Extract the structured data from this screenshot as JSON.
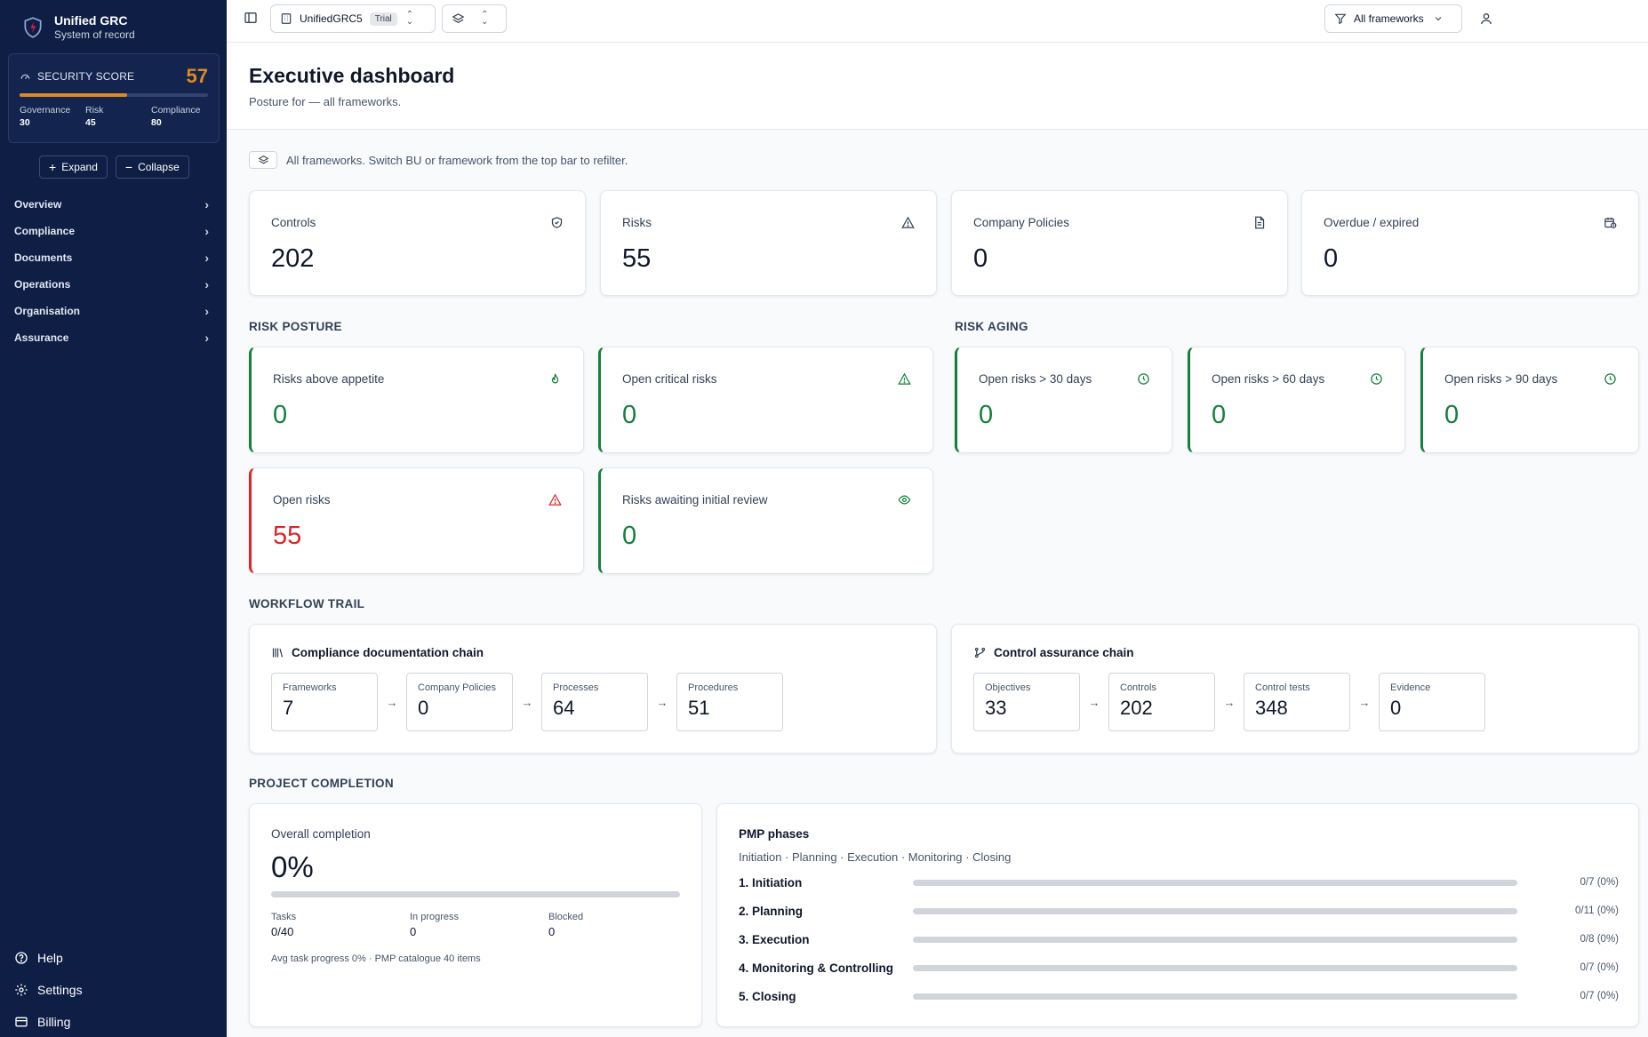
{
  "brand": {
    "title": "Unified GRC",
    "subtitle": "System of record"
  },
  "security_score": {
    "label": "SECURITY SCORE",
    "value": "57",
    "progress": 0.57,
    "governance_label": "Governance",
    "governance_value": "30",
    "risk_label": "Risk",
    "risk_value": "45",
    "compliance_label": "Compliance",
    "compliance_value": "80",
    "color": "#e08a1e"
  },
  "sidebar": {
    "expand_label": "Expand",
    "collapse_label": "Collapse",
    "items": [
      {
        "label": "Overview"
      },
      {
        "label": "Compliance"
      },
      {
        "label": "Documents"
      },
      {
        "label": "Operations"
      },
      {
        "label": "Organisation"
      },
      {
        "label": "Assurance"
      }
    ],
    "bottom": [
      {
        "label": "Help",
        "icon": "help-circle-icon"
      },
      {
        "label": "Settings",
        "icon": "gear-icon"
      },
      {
        "label": "Billing",
        "icon": "credit-card-icon"
      }
    ]
  },
  "topbar": {
    "org_name": "UnifiedGRC5",
    "org_badge": "Trial",
    "framework_filter": "All frameworks"
  },
  "page": {
    "title": "Executive dashboard",
    "subtitle": "Posture for — all frameworks.",
    "notice": "All frameworks. Switch BU or framework from the top bar to refilter."
  },
  "kpis": [
    {
      "label": "Controls",
      "value": "202",
      "icon": "shield-check-icon"
    },
    {
      "label": "Risks",
      "value": "55",
      "icon": "warning-triangle-icon"
    },
    {
      "label": "Company Policies",
      "value": "0",
      "icon": "document-icon"
    },
    {
      "label": "Overdue / expired",
      "value": "0",
      "icon": "calendar-clock-icon"
    }
  ],
  "risk_posture": {
    "heading": "RISK POSTURE",
    "cards": [
      {
        "label": "Risks above appetite",
        "value": "0",
        "icon": "flame-icon"
      },
      {
        "label": "Open critical risks",
        "value": "0",
        "icon": "warning-triangle-icon"
      },
      {
        "label": "Open risks",
        "value": "55",
        "icon": "warning-triangle-icon"
      },
      {
        "label": "Risks awaiting initial review",
        "value": "0",
        "icon": "eye-icon"
      }
    ]
  },
  "risk_aging": {
    "heading": "RISK AGING",
    "cards": [
      {
        "label": "Open risks > 30 days",
        "value": "0",
        "icon": "clock-icon"
      },
      {
        "label": "Open risks > 60 days",
        "value": "0",
        "icon": "clock-icon"
      },
      {
        "label": "Open risks > 90 days",
        "value": "0",
        "icon": "clock-icon"
      }
    ]
  },
  "workflow": {
    "heading": "WORKFLOW TRAIL",
    "doc_chain": {
      "title": "Compliance documentation chain",
      "steps": [
        {
          "label": "Frameworks",
          "value": "7"
        },
        {
          "label": "Company Policies",
          "value": "0"
        },
        {
          "label": "Processes",
          "value": "64"
        },
        {
          "label": "Procedures",
          "value": "51"
        }
      ]
    },
    "control_chain": {
      "title": "Control assurance chain",
      "steps": [
        {
          "label": "Objectives",
          "value": "33"
        },
        {
          "label": "Controls",
          "value": "202"
        },
        {
          "label": "Control tests",
          "value": "348"
        },
        {
          "label": "Evidence",
          "value": "0"
        }
      ]
    }
  },
  "project": {
    "heading": "PROJECT COMPLETION",
    "overall_label": "Overall completion",
    "overall_value": "0%",
    "overall_progress": 0,
    "tasks_label": "Tasks",
    "tasks_value": "0/40",
    "in_progress_label": "In progress",
    "in_progress_value": "0",
    "blocked_label": "Blocked",
    "blocked_value": "0",
    "footnote": "Avg task progress 0% · PMP catalogue 40 items",
    "pmp_title": "PMP phases",
    "pmp_subtitle": "Initiation · Planning · Execution · Monitoring · Closing",
    "phases": [
      {
        "name": "1. Initiation",
        "value": "0/7 (0%)",
        "progress": 0
      },
      {
        "name": "2. Planning",
        "value": "0/11 (0%)",
        "progress": 0
      },
      {
        "name": "3. Execution",
        "value": "0/8 (0%)",
        "progress": 0
      },
      {
        "name": "4. Monitoring & Controlling",
        "value": "0/7 (0%)",
        "progress": 0
      },
      {
        "name": "5. Closing",
        "value": "0/7 (0%)",
        "progress": 0
      }
    ]
  }
}
